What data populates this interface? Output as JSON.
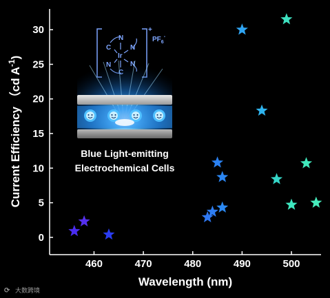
{
  "chart_data": {
    "type": "scatter",
    "title": "",
    "xlabel": "Wavelength (nm)",
    "ylabel": "Current Efficiency （cd A",
    "ylabel_sup": "-1",
    "ylabel_close": ")",
    "xlim": [
      451,
      506
    ],
    "ylim": [
      -2.5,
      33
    ],
    "xticks": [
      460,
      470,
      480,
      490,
      500
    ],
    "yticks": [
      0,
      5,
      10,
      15,
      20,
      25,
      30
    ],
    "grid": false,
    "legend": "none",
    "marker": "star",
    "series": [
      {
        "points": [
          {
            "x": 456.0,
            "y": 0.9,
            "color": "#4a2cf0"
          },
          {
            "x": 458.0,
            "y": 2.3,
            "color": "#5530ee"
          },
          {
            "x": 463.0,
            "y": 0.4,
            "color": "#2a3cf2"
          },
          {
            "x": 483.0,
            "y": 2.9,
            "color": "#2f78f2"
          },
          {
            "x": 484.0,
            "y": 3.7,
            "color": "#2f7ef2"
          },
          {
            "x": 485.0,
            "y": 10.8,
            "color": "#2b82f2"
          },
          {
            "x": 486.0,
            "y": 8.7,
            "color": "#2b86f2"
          },
          {
            "x": 486.0,
            "y": 4.3,
            "color": "#2b88f2"
          },
          {
            "x": 490.0,
            "y": 30.0,
            "color": "#2fa4f2"
          },
          {
            "x": 494.0,
            "y": 18.3,
            "color": "#2fb4ee"
          },
          {
            "x": 497.0,
            "y": 8.4,
            "color": "#35d6c8"
          },
          {
            "x": 499.0,
            "y": 31.5,
            "color": "#3ee0c0"
          },
          {
            "x": 500.0,
            "y": 4.7,
            "color": "#3ee8c0"
          },
          {
            "x": 503.0,
            "y": 10.7,
            "color": "#40e8bc"
          },
          {
            "x": 505.0,
            "y": 5.0,
            "color": "#46ecbc"
          }
        ]
      }
    ]
  },
  "inset": {
    "caption_line1": "Blue Light-emitting",
    "caption_line2": "Electrochemical Cells",
    "formula_charge": "+",
    "formula_counterion": "PF",
    "formula_counterion_sub": "6",
    "formula_counterion_sup": "-",
    "atom_labels": [
      "N",
      "C",
      "Ir",
      "N",
      "N",
      "C",
      "N"
    ],
    "accent_color": "#7ea6ff"
  },
  "watermark": {
    "text": "大数跨境"
  },
  "colors": {
    "background": "#000000",
    "axis": "#ffffff",
    "glow": "#1e9cff"
  }
}
